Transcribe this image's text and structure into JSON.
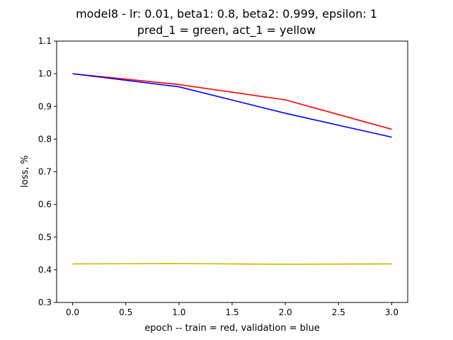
{
  "chart_data": {
    "type": "line",
    "title": "model8 - lr: 0.01, beta1: 0.8, beta2: 0.999, epsilon: 1",
    "subtitle": "pred_1 = green, act_1 = yellow",
    "xlabel": "epoch -- train = red, validation = blue",
    "ylabel": "loss, %",
    "xlim": [
      -0.15,
      3.15
    ],
    "ylim": [
      0.3,
      1.1
    ],
    "xticks": [
      0.0,
      0.5,
      1.0,
      1.5,
      2.0,
      2.5,
      3.0
    ],
    "xtick_labels": [
      "0.0",
      "0.5",
      "1.0",
      "1.5",
      "2.0",
      "2.5",
      "3.0"
    ],
    "yticks": [
      0.3,
      0.4,
      0.5,
      0.6,
      0.7,
      0.8,
      0.9,
      1.0,
      1.1
    ],
    "ytick_labels": [
      "0.3",
      "0.4",
      "0.5",
      "0.6",
      "0.7",
      "0.8",
      "0.9",
      "1.0",
      "1.1"
    ],
    "grid": false,
    "series": [
      {
        "color": "#ff0000",
        "x": [
          0,
          1,
          2,
          3
        ],
        "y": [
          1.0,
          0.967,
          0.92,
          0.83
        ]
      },
      {
        "color": "#0000ff",
        "x": [
          0,
          1,
          2,
          3
        ],
        "y": [
          1.0,
          0.96,
          0.879,
          0.806
        ]
      },
      {
        "color": "#bfbf00",
        "x": [
          0,
          1,
          2,
          3
        ],
        "y": [
          0.418,
          0.419,
          0.417,
          0.418
        ]
      }
    ]
  }
}
